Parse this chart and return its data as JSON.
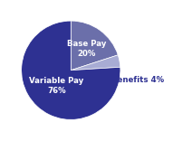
{
  "slices": [
    {
      "label": "Base Pay\n20%",
      "value": 20,
      "color": "#6b6faa",
      "label_r": 0.55,
      "label_color": "#ffffff"
    },
    {
      "label": "Benefits 4%",
      "value": 4,
      "color": "#a8acd4",
      "label_r": 1.18,
      "label_color": "#2e3192"
    },
    {
      "label": "Variable Pay\n76%",
      "value": 76,
      "color": "#2e3192",
      "label_r": 0.42,
      "label_color": "#ffffff"
    }
  ],
  "background_color": "#ffffff",
  "startangle": 90,
  "counterclock": false,
  "label_fontsize": 6.2,
  "label_fontweight": "bold"
}
